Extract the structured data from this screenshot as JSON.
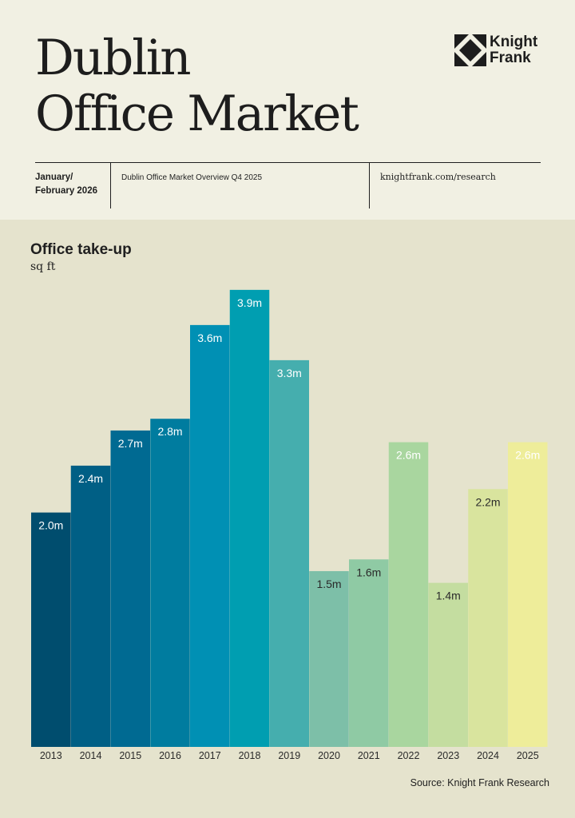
{
  "header": {
    "title_line1": "Dublin",
    "title_line2": "Office Market",
    "date": "January/ February 2026",
    "report": "Dublin Office Market Overview Q4 2025",
    "url": "knightfrank.com/research",
    "logo_line1": "Knight",
    "logo_line2": "Frank"
  },
  "chart_data": {
    "type": "bar",
    "title": "Office take-up",
    "ylabel": "sq ft",
    "categories": [
      "2013",
      "2014",
      "2015",
      "2016",
      "2017",
      "2018",
      "2019",
      "2020",
      "2021",
      "2022",
      "2023",
      "2024",
      "2025"
    ],
    "values": [
      2.0,
      2.4,
      2.7,
      2.8,
      3.6,
      3.9,
      3.3,
      1.5,
      1.6,
      2.6,
      1.4,
      2.2,
      2.6
    ],
    "value_labels": [
      "2.0m",
      "2.4m",
      "2.7m",
      "2.8m",
      "3.6m",
      "3.9m",
      "3.3m",
      "1.5m",
      "1.6m",
      "2.6m",
      "1.4m",
      "2.2m",
      "2.6m"
    ],
    "colors": [
      "#004d6e",
      "#005f85",
      "#006a92",
      "#007c9f",
      "#0090b4",
      "#009eb1",
      "#45aeae",
      "#7dbfa8",
      "#8fcaa4",
      "#a9d69f",
      "#c4dda0",
      "#d9e49e",
      "#eeed9a"
    ],
    "ylim": [
      0,
      4.0
    ],
    "grid": false,
    "legend": "none"
  },
  "source": "Source: Knight Frank Research"
}
